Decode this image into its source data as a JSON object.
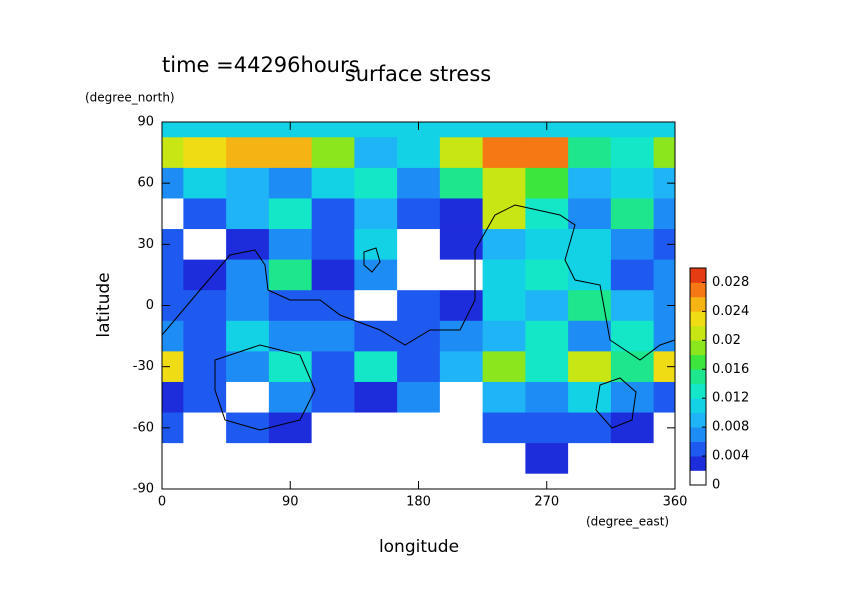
{
  "chart_data": {
    "type": "contour",
    "title": "surface stress",
    "subtitle": "time =44296hours",
    "xlabel": "longitude",
    "ylabel": "latitude",
    "xunit": "(degree_east)",
    "yunit": "(degree_north)",
    "xlim": [
      0,
      360
    ],
    "ylim": [
      -90,
      90
    ],
    "xticks": [
      0,
      90,
      180,
      270,
      360
    ],
    "yticks": [
      -90,
      -60,
      -30,
      0,
      30,
      60,
      90
    ],
    "x": [
      0,
      30,
      60,
      90,
      120,
      150,
      180,
      210,
      240,
      270,
      300,
      330,
      360
    ],
    "y": [
      90,
      75,
      60,
      45,
      30,
      15,
      0,
      -15,
      -30,
      -45,
      -60,
      -75,
      -90
    ],
    "z": [
      [
        0.01,
        0.01,
        0.01,
        0.01,
        0.01,
        0.01,
        0.01,
        0.01,
        0.01,
        0.01,
        0.01,
        0.01,
        0.01
      ],
      [
        0.02,
        0.022,
        0.024,
        0.024,
        0.018,
        0.008,
        0.01,
        0.02,
        0.026,
        0.026,
        0.014,
        0.012,
        0.018
      ],
      [
        0.006,
        0.01,
        0.008,
        0.006,
        0.01,
        0.012,
        0.006,
        0.014,
        0.02,
        0.016,
        0.008,
        0.01,
        0.008
      ],
      [
        0,
        0.004,
        0.008,
        0.012,
        0.004,
        0.008,
        0.004,
        0.002,
        0.02,
        0.012,
        0.006,
        0.014,
        0.006
      ],
      [
        0.004,
        0,
        0.002,
        0.006,
        0.004,
        0.01,
        0,
        0.002,
        0.008,
        0.01,
        0.01,
        0.006,
        0.004
      ],
      [
        0.004,
        0.002,
        0.006,
        0.014,
        0.002,
        0.006,
        0,
        0,
        0.01,
        0.012,
        0.01,
        0.004,
        0.006
      ],
      [
        0.004,
        0.004,
        0.006,
        0.004,
        0.004,
        0,
        0.004,
        0.002,
        0.01,
        0.008,
        0.014,
        0.008,
        0.006
      ],
      [
        0.006,
        0.004,
        0.01,
        0.006,
        0.006,
        0.004,
        0.004,
        0.006,
        0.008,
        0.012,
        0.006,
        0.012,
        0.006
      ],
      [
        0.022,
        0.004,
        0.006,
        0.012,
        0.004,
        0.012,
        0.004,
        0.008,
        0.018,
        0.012,
        0.02,
        0.014,
        0.022
      ],
      [
        0.002,
        0.004,
        0,
        0.006,
        0.004,
        0.002,
        0.006,
        0,
        0.008,
        0.006,
        0.01,
        0.006,
        0.004
      ],
      [
        0.004,
        0,
        0.004,
        0.002,
        0,
        0,
        0,
        0,
        0.004,
        0.004,
        0.004,
        0.002,
        0
      ],
      [
        0,
        0,
        0,
        0,
        0,
        0,
        0,
        0,
        0,
        0.002,
        0,
        0,
        0
      ],
      [
        0,
        0,
        0,
        0,
        0,
        0,
        0,
        0,
        0,
        0,
        0,
        0,
        0
      ]
    ],
    "colorbar": {
      "lim": [
        0,
        0.03
      ],
      "ticks": [
        0,
        0.004,
        0.008,
        0.012,
        0.016,
        0.02,
        0.024,
        0.028
      ],
      "colors": [
        "#ffffff",
        "#1e2ddc",
        "#1e5af0",
        "#1e8cf5",
        "#1eb4f5",
        "#14d2e6",
        "#14e6c8",
        "#1ee68c",
        "#3ce63c",
        "#8ce61e",
        "#c8e614",
        "#f0dc14",
        "#f5b414",
        "#f57814",
        "#e63c14"
      ]
    }
  }
}
